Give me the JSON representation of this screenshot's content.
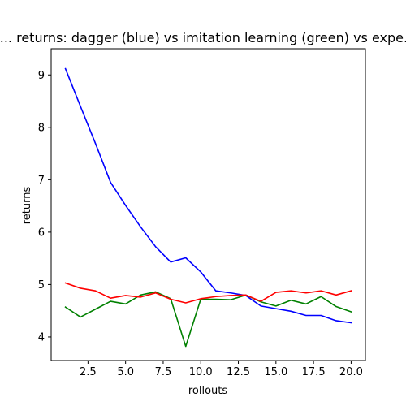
{
  "chart_data": {
    "type": "line",
    "title": "... returns: dagger (blue) vs imitation learning (green) vs expe...",
    "xlabel": "rollouts",
    "ylabel": "returns",
    "xlim": [
      0.05,
      20.95
    ],
    "ylim": [
      3.55,
      9.5
    ],
    "xticks": [
      2.5,
      5.0,
      7.5,
      10.0,
      12.5,
      15.0,
      17.5,
      20.0
    ],
    "xtick_labels": [
      "2.5",
      "5.0",
      "7.5",
      "10.0",
      "12.5",
      "15.0",
      "17.5",
      "20.0"
    ],
    "yticks": [
      4,
      5,
      6,
      7,
      8,
      9
    ],
    "ytick_labels": [
      "4",
      "5",
      "6",
      "7",
      "8",
      "9"
    ],
    "grid": false,
    "x": [
      1,
      2,
      3,
      4,
      5,
      6,
      7,
      8,
      9,
      10,
      11,
      12,
      13,
      14,
      15,
      16,
      17,
      18,
      19,
      20
    ],
    "series": [
      {
        "color": "#0000ff",
        "values": [
          9.12,
          8.4,
          7.69,
          6.95,
          6.51,
          6.1,
          5.72,
          5.43,
          5.51,
          5.24,
          4.88,
          4.84,
          4.79,
          4.59,
          4.54,
          4.49,
          4.41,
          4.41,
          4.31,
          4.27
        ]
      },
      {
        "color": "#008000",
        "values": [
          4.57,
          4.38,
          4.53,
          4.68,
          4.63,
          4.8,
          4.86,
          4.73,
          3.82,
          4.72,
          4.72,
          4.71,
          4.8,
          4.67,
          4.59,
          4.7,
          4.63,
          4.77,
          4.58,
          4.48
        ]
      },
      {
        "color": "#ff0000",
        "values": [
          5.03,
          4.93,
          4.88,
          4.74,
          4.79,
          4.76,
          4.84,
          4.72,
          4.65,
          4.73,
          4.77,
          4.79,
          4.8,
          4.68,
          4.85,
          4.88,
          4.84,
          4.88,
          4.8,
          4.88
        ]
      }
    ]
  }
}
